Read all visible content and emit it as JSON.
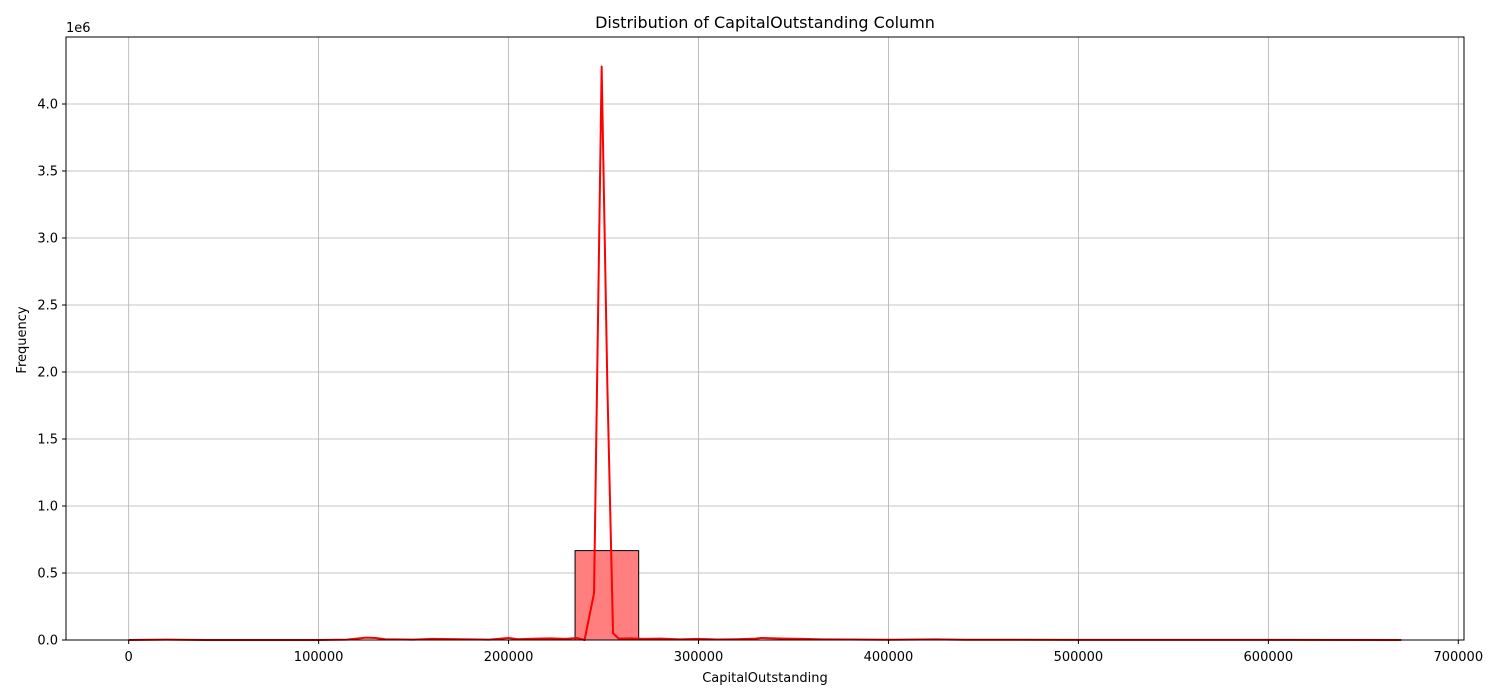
{
  "chart_data": {
    "type": "bar",
    "title": "Distribution of CapitalOutstanding Column",
    "xlabel": "CapitalOutstanding",
    "ylabel": "Frequency",
    "y_offset_label": "1e6",
    "xlim": [
      -33000,
      703000
    ],
    "ylim": [
      0,
      4.5
    ],
    "x_ticks": [
      0,
      100000,
      200000,
      300000,
      400000,
      500000,
      600000,
      700000
    ],
    "x_tick_labels": [
      "0",
      "100000",
      "200000",
      "300000",
      "400000",
      "500000",
      "600000",
      "700000"
    ],
    "y_ticks": [
      0.0,
      0.5,
      1.0,
      1.5,
      2.0,
      2.5,
      3.0,
      3.5,
      4.0
    ],
    "y_tick_labels": [
      "0.0",
      "0.5",
      "1.0",
      "1.5",
      "2.0",
      "2.5",
      "3.0",
      "3.5",
      "4.0"
    ],
    "grid": true,
    "colors": {
      "bar_fill": "#ff7f7f",
      "bar_edge": "#000000",
      "kde_line": "#ff0000",
      "grid": "#b0b0b0"
    },
    "histogram": {
      "bins": [
        {
          "x0": 235000,
          "x1": 268500,
          "value": 0.667
        }
      ]
    },
    "kde": {
      "x": [
        0,
        20000,
        40000,
        60000,
        80000,
        100000,
        115000,
        125000,
        130000,
        135000,
        150000,
        160000,
        175000,
        190000,
        200000,
        205000,
        215000,
        222000,
        230000,
        236000,
        240000,
        245000,
        249000,
        252000,
        255000,
        258000,
        265000,
        270000,
        280000,
        290000,
        300000,
        310000,
        320000,
        330000,
        333000,
        345000,
        355000,
        365000,
        380000,
        400000,
        425000,
        440000,
        500000,
        600000,
        670000
      ],
      "y": [
        0.0,
        0.003,
        0.0,
        0.0,
        0.0,
        0.0,
        0.003,
        0.018,
        0.015,
        0.006,
        0.003,
        0.008,
        0.006,
        0.003,
        0.015,
        0.006,
        0.01,
        0.012,
        0.008,
        0.015,
        0.0,
        0.35,
        4.28,
        1.9,
        0.05,
        0.01,
        0.012,
        0.008,
        0.01,
        0.005,
        0.008,
        0.004,
        0.006,
        0.01,
        0.015,
        0.01,
        0.008,
        0.005,
        0.004,
        0.002,
        0.005,
        0.002,
        0.001,
        0.001,
        0.0
      ]
    }
  }
}
